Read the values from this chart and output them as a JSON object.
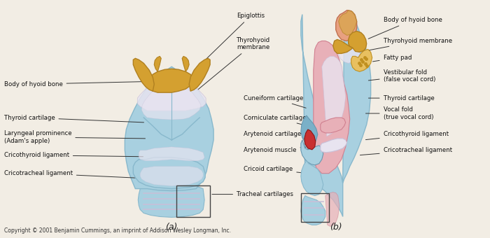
{
  "figsize": [
    7.0,
    3.4
  ],
  "dpi": 100,
  "bg_color": "#f2ede4",
  "copyright": "Copyright © 2001 Benjamin Cummings, an imprint of Addison Wesley Longman, Inc.",
  "label_a": "(a)",
  "label_b": "(b)",
  "blue_light": "#a8d0e0",
  "blue_mid": "#88b8cc",
  "blue_dark": "#6898b0",
  "lavender": "#c8c0d8",
  "gold": "#d4a030",
  "gold_dark": "#b08020",
  "pink_light": "#e8b0b8",
  "pink_mid": "#d08090",
  "red_ary": "#c83030",
  "peach": "#e8a080",
  "fatty": "#e8c060",
  "white_ish": "#e8e4f0"
}
